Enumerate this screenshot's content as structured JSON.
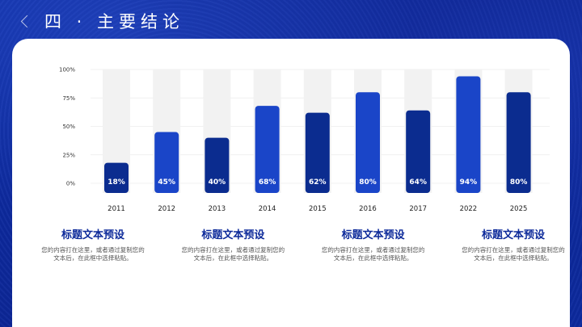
{
  "header": {
    "title": "四 · 主要结论"
  },
  "chart_data": {
    "type": "bar",
    "categories": [
      "2011",
      "2012",
      "2013",
      "2014",
      "2015",
      "2016",
      "2017",
      "2022",
      "2025"
    ],
    "values": [
      18,
      45,
      40,
      68,
      62,
      80,
      64,
      94,
      80
    ],
    "value_labels": [
      "18%",
      "45%",
      "40%",
      "68%",
      "62%",
      "80%",
      "64%",
      "94%",
      "80%"
    ],
    "yticks": [
      "0%",
      "25%",
      "50%",
      "75%",
      "100%"
    ],
    "ylim": [
      0,
      100
    ],
    "grid": true,
    "colors": [
      "#0b2c8f",
      "#1a45c8",
      "#0b2c8f",
      "#1a45c8",
      "#0b2c8f",
      "#1a45c8",
      "#0b2c8f",
      "#1a45c8",
      "#0b2c8f"
    ],
    "track_color": "#f2f2f2"
  },
  "columns": [
    {
      "title": "标题文本预设",
      "body": "您的内容打在这里，或者通过复制您的文本后，在此框中选择粘贴。"
    },
    {
      "title": "标题文本预设",
      "body": "您的内容打在这里，或者通过复制您的文本后，在此框中选择粘贴。"
    },
    {
      "title": "标题文本预设",
      "body": "您的内容打在这里，或者通过复制您的文本后，在此框中选择粘贴。"
    },
    {
      "title": "标题文本预设",
      "body": "您的内容打在这里，或者通过复制您的文本后，在此框中选择粘贴。"
    }
  ]
}
